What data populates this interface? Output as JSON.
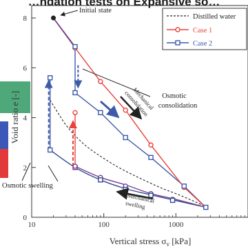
{
  "chart_data": {
    "type": "line",
    "title": "…ndation tests on Expansive so…",
    "xlabel": "Vertical stress σ",
    "xlabel_sub": "v",
    "xlabel_unit": " [kPa]",
    "ylabel": "Void ratio e [-]",
    "x_scale": "log",
    "xlim": [
      10,
      10000
    ],
    "ylim": [
      0,
      8.5
    ],
    "x_ticks": [
      10,
      100,
      1000
    ],
    "x_tick_labels": [
      "10",
      "100",
      "1000"
    ],
    "y_ticks": [
      0,
      2,
      4,
      6,
      8
    ],
    "y_tick_labels": [
      "0",
      "2",
      "4",
      "6",
      "8"
    ],
    "legend_position": "top-right",
    "legend": [
      "Distilled water",
      "Case 1",
      "Case 2"
    ],
    "colors": {
      "distilled": "#222222",
      "case1": "#e8423a",
      "case2": "#3d5aa8",
      "case2_dark": "#2f4a95",
      "overlap": "#7a3e8c",
      "stripe_green": "#4fa87a",
      "stripe_blue": "#3b57b8",
      "stripe_red": "#e23a3a"
    },
    "series": [
      {
        "name": "Distilled water",
        "style": "dashed",
        "x": [
          18,
          30,
          50,
          80,
          150,
          300,
          600,
          1000,
          1600,
          2500
        ],
        "y": [
          4.7,
          3.7,
          3.0,
          2.55,
          2.05,
          1.6,
          1.2,
          0.95,
          0.7,
          0.45
        ]
      },
      {
        "name": "Case 1",
        "marker": "circle",
        "x": [
          20,
          40,
          90,
          200,
          450,
          1300,
          2600
        ],
        "y": [
          8.0,
          6.8,
          5.45,
          4.3,
          2.9,
          1.2,
          0.4
        ]
      },
      {
        "name": "Case 2",
        "marker": "square",
        "x": [
          20,
          40,
          40,
          90,
          200,
          450,
          1300,
          2600
        ],
        "y": [
          8.0,
          6.85,
          5.0,
          4.2,
          3.2,
          2.4,
          1.25,
          0.4
        ]
      }
    ],
    "unload_case1": {
      "x": [
        2600,
        900,
        450,
        200,
        90,
        40
      ],
      "y": [
        0.4,
        0.75,
        0.95,
        1.3,
        1.6,
        2.05
      ]
    },
    "unload_case2": {
      "x": [
        2600,
        900,
        450,
        200,
        90,
        40,
        18
      ],
      "y": [
        0.4,
        0.7,
        0.9,
        1.15,
        1.5,
        2.0,
        2.7
      ]
    },
    "reload_case1": {
      "x": [
        40,
        40
      ],
      "y": [
        2.05,
        4.2
      ]
    },
    "reload_case2": {
      "x": [
        18,
        18
      ],
      "y": [
        2.7,
        5.6
      ]
    },
    "annotations": {
      "initial_state": "Initial state",
      "osmotic_consolidation": [
        "Osmotic",
        "consolidation"
      ],
      "mechanical_consolidation": [
        "Mechanical",
        "consolidation"
      ],
      "osmotic_swelling": "Osmotic swelling",
      "mechanical_swelling": [
        "Mechanical",
        "swelling"
      ]
    }
  }
}
